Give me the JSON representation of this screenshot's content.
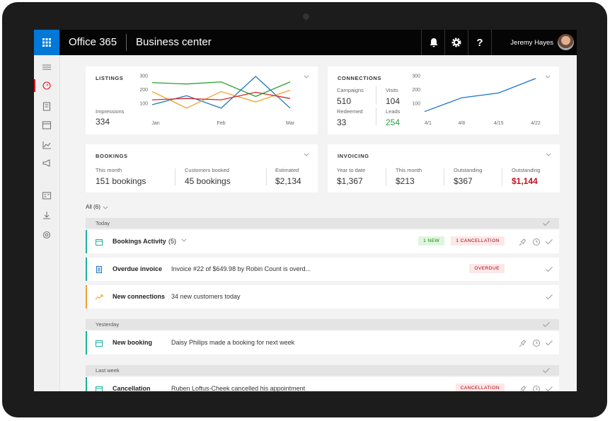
{
  "header": {
    "app": "Office 365",
    "section": "Business center",
    "user": "Jeremy Hayes"
  },
  "listings": {
    "title": "LISTINGS",
    "metric_label": "Impressions",
    "metric_value": "334",
    "chart": {
      "type": "line",
      "categories": [
        "Jan",
        null,
        "Feb",
        null,
        "Mar"
      ],
      "ylim": [
        40,
        320
      ],
      "yticks": [
        100,
        200,
        300
      ],
      "series": [
        {
          "color": "#2ca02c",
          "values": [
            250,
            240,
            255,
            150,
            255
          ]
        },
        {
          "color": "#1f77b4",
          "values": [
            90,
            155,
            65,
            295,
            65
          ]
        },
        {
          "color": "#f0a030",
          "values": [
            185,
            65,
            185,
            110,
            195
          ]
        },
        {
          "color": "#d62728",
          "values": [
            125,
            135,
            125,
            180,
            135
          ]
        }
      ]
    }
  },
  "connections": {
    "title": "CONNECTIONS",
    "stats": [
      {
        "label": "Campaigns",
        "value": "510"
      },
      {
        "label": "Visits",
        "value": "104"
      },
      {
        "label": "Redeemed",
        "value": "33"
      },
      {
        "label": "Leads",
        "value": "254",
        "color": "#2f9e44"
      }
    ],
    "chart": {
      "type": "line",
      "categories": [
        "4/1",
        "4/8",
        "4/15",
        "4/22"
      ],
      "ylim": [
        40,
        320
      ],
      "yticks": [
        100,
        200,
        300
      ],
      "series": [
        {
          "color": "#1a73c8",
          "values": [
            40,
            140,
            175,
            280
          ]
        }
      ]
    }
  },
  "bookings": {
    "title": "BOOKINGS",
    "stats": [
      {
        "label": "This month",
        "value": "151 bookings"
      },
      {
        "label": "Customers booked",
        "value": "45 bookings"
      },
      {
        "label": "Estimated",
        "value": "$2,134"
      }
    ]
  },
  "invoicing": {
    "title": "INVOICING",
    "stats": [
      {
        "label": "Year to date",
        "value": "$1,367"
      },
      {
        "label": "This month",
        "value": "$213"
      },
      {
        "label": "Outstanding",
        "value": "$367"
      },
      {
        "label": "Outstanding",
        "value": "$1,144",
        "color": "#c50f1f"
      }
    ]
  },
  "feed": {
    "filter": "All (6)",
    "groups": [
      {
        "name": "Today",
        "items": [
          {
            "title": "Bookings Activity",
            "count": "(5)",
            "accent": "#1bb0a0",
            "icon": "calendar",
            "badges": [
              {
                "label": "1 NEW",
                "color": "#107c10",
                "bg": "#dff6dd"
              },
              {
                "label": "1 CANCELLATION",
                "color": "#a80000",
                "bg": "#fde7e9"
              }
            ],
            "pin": true
          },
          {
            "title": "Overdue invoice",
            "description": "Invoice #22 of $649.98 by Robin Count is overd...",
            "accent": "#1bb0a0",
            "icon": "doc",
            "badges": [
              {
                "label": "OVERDUE",
                "color": "#a80000",
                "bg": "#fde7e9"
              }
            ],
            "pin": false
          },
          {
            "title": "New connections",
            "description": "34 new customers today",
            "accent": "#f0a030",
            "icon": "trend",
            "badges": [],
            "pin": false
          }
        ]
      },
      {
        "name": "Yesterday",
        "items": [
          {
            "title": "New booking",
            "description": "Daisy Philips made a booking for next week",
            "accent": "#1bb0a0",
            "icon": "calendar",
            "badges": [],
            "pin": true
          }
        ]
      },
      {
        "name": "Last week",
        "items": [
          {
            "title": "Cancellation",
            "description": "Ruben Loftus-Cheek cancelled his appointment",
            "accent": "#1bb0a0",
            "icon": "calendar",
            "badges": [
              {
                "label": "CANCELLATION",
                "color": "#a80000",
                "bg": "#fde7e9"
              }
            ],
            "pin": true
          }
        ]
      }
    ]
  }
}
